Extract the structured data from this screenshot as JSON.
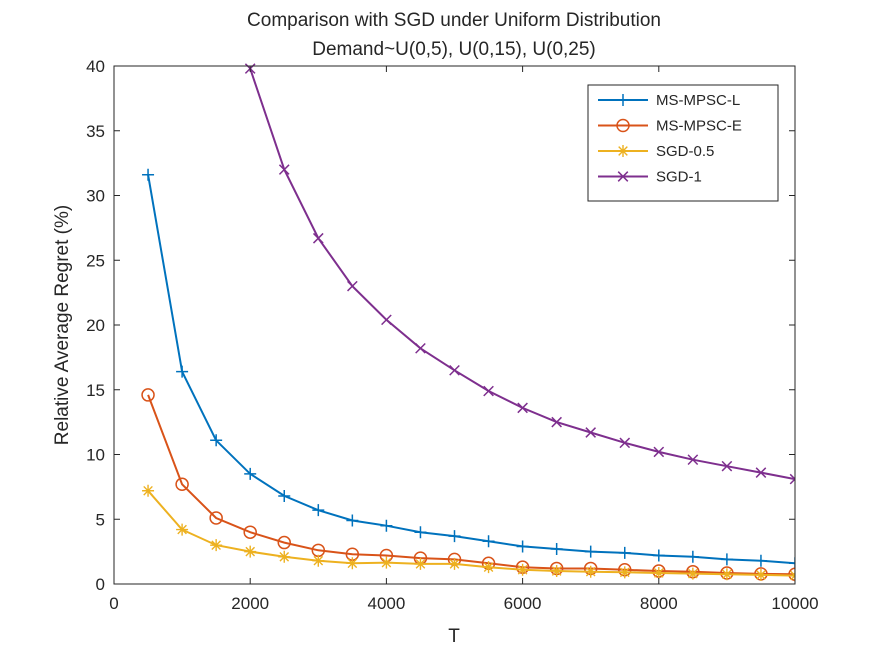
{
  "chart_data": {
    "type": "line",
    "title": "Comparison with SGD under Uniform Distribution",
    "subtitle": "Demand~U(0,5), U(0,15), U(0,25)",
    "xlabel": "T",
    "ylabel": "Relative Average Regret (%)",
    "xlim": [
      0,
      10000
    ],
    "ylim": [
      0,
      40
    ],
    "xticks": [
      0,
      2000,
      4000,
      6000,
      8000,
      10000
    ],
    "yticks": [
      0,
      5,
      10,
      15,
      20,
      25,
      30,
      35,
      40
    ],
    "grid": false,
    "legend_position": "top-right",
    "x": [
      500,
      1000,
      1500,
      2000,
      2500,
      3000,
      3500,
      4000,
      4500,
      5000,
      5500,
      6000,
      6500,
      7000,
      7500,
      8000,
      8500,
      9000,
      9500,
      10000
    ],
    "series": [
      {
        "name": "MS-MPSC-L",
        "color": "#0072BD",
        "marker": "plus",
        "values": [
          31.6,
          16.4,
          11.1,
          8.5,
          6.8,
          5.7,
          4.9,
          4.5,
          4.0,
          3.7,
          3.3,
          2.9,
          2.7,
          2.5,
          2.4,
          2.2,
          2.1,
          1.9,
          1.8,
          1.6
        ]
      },
      {
        "name": "MS-MPSC-E",
        "color": "#D95319",
        "marker": "circle",
        "values": [
          14.6,
          7.7,
          5.1,
          4.0,
          3.2,
          2.6,
          2.3,
          2.2,
          2.0,
          1.9,
          1.6,
          1.3,
          1.2,
          1.2,
          1.1,
          1.0,
          0.95,
          0.85,
          0.78,
          0.75
        ]
      },
      {
        "name": "SGD-0.5",
        "color": "#EDB120",
        "marker": "asterisk",
        "values": [
          7.2,
          4.2,
          3.0,
          2.5,
          2.1,
          1.8,
          1.6,
          1.65,
          1.55,
          1.55,
          1.3,
          1.1,
          1.0,
          0.95,
          0.9,
          0.85,
          0.8,
          0.75,
          0.7,
          0.65
        ]
      },
      {
        "name": "SGD-1",
        "color": "#7E2F8E",
        "marker": "x",
        "values": [
          null,
          null,
          null,
          39.8,
          32.0,
          26.7,
          23.0,
          20.4,
          18.2,
          16.5,
          14.9,
          13.6,
          12.5,
          11.7,
          10.9,
          10.2,
          9.6,
          9.1,
          8.6,
          8.1
        ]
      }
    ]
  }
}
